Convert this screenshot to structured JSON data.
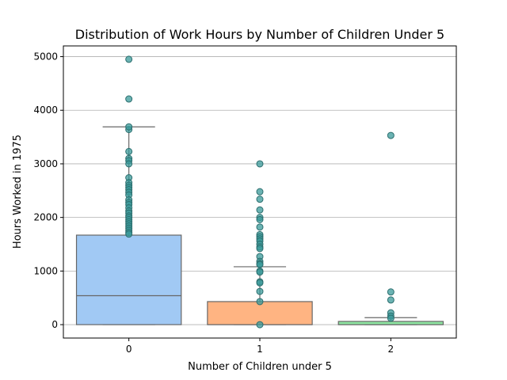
{
  "chart_data": {
    "type": "box",
    "title": "Distribution of Work Hours by Number of Children Under 5",
    "xlabel": "Number of Children under 5",
    "ylabel": "Hours Worked in 1975",
    "categories": [
      "0",
      "1",
      "2"
    ],
    "ylim": [
      -250,
      5200
    ],
    "yticks": [
      0,
      1000,
      2000,
      3000,
      4000,
      5000
    ],
    "grid": "horizontal",
    "boxes": [
      {
        "category": "0",
        "color": "#a1c9f4",
        "q1": 0,
        "median": 540,
        "q3": 1670,
        "whisker_low": 0,
        "whisker_high": 3690,
        "outliers": [
          3640,
          3690,
          4210,
          4950,
          3230,
          3100,
          3060,
          3000,
          2740,
          2650,
          2600,
          2560,
          2520,
          2470,
          2420,
          2330,
          2280,
          2240,
          2180,
          2120,
          2080,
          2030,
          2000,
          1960,
          1920,
          1880,
          1840,
          1800,
          1760,
          1720,
          1690
        ]
      },
      {
        "category": "1",
        "color": "#ffb482",
        "q1": 0,
        "median": 0,
        "q3": 430,
        "whisker_low": 0,
        "whisker_high": 1080,
        "outliers": [
          3000,
          2480,
          2340,
          2140,
          2000,
          1960,
          1820,
          1680,
          1640,
          1600,
          1560,
          1500,
          1450,
          1420,
          1270,
          1180,
          1140,
          1120,
          1000,
          980,
          800,
          780,
          620,
          430,
          0
        ]
      },
      {
        "category": "2",
        "color": "#8de5a1",
        "q1": 0,
        "median": 0,
        "q3": 60,
        "whisker_low": 0,
        "whisker_high": 130,
        "outliers": [
          3530,
          610,
          460,
          220,
          160,
          120
        ]
      }
    ],
    "outlier_color": "#3a9a9a",
    "outlier_edge": "#2d6f6f"
  }
}
